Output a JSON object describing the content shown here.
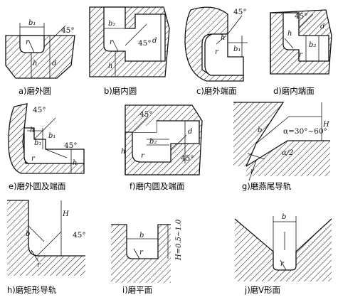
{
  "panels": [
    {
      "id": "a",
      "caption": "a)磨外圆",
      "labels": {
        "b": "b₁",
        "r": "r",
        "h": "h",
        "d": "d",
        "angle": "45°"
      }
    },
    {
      "id": "b",
      "caption": "b)磨内圆",
      "labels": {
        "b": "b₂",
        "r": "r",
        "h": "h",
        "d": "d",
        "angle": "45°"
      }
    },
    {
      "id": "c",
      "caption": "c)磨外端面",
      "labels": {
        "b": "b₁",
        "r": "r",
        "h": "h",
        "angle": "45°"
      }
    },
    {
      "id": "d",
      "caption": "d)磨内端面",
      "labels": {
        "b": "b₂",
        "r": "r",
        "h": "h",
        "d": "d",
        "angle": "45°"
      }
    },
    {
      "id": "e",
      "caption": "e)磨外圆及端面",
      "labels": {
        "b": "b₁",
        "b2": "b₁",
        "r": "r",
        "h": "h",
        "h2": "h",
        "angle1": "45°",
        "angle2": "45°"
      }
    },
    {
      "id": "f",
      "caption": "f)磨内圆及端面",
      "labels": {
        "b": "b₂",
        "r": "r",
        "h": "h",
        "d": "d",
        "angle1": "45°",
        "angle2": "45°"
      }
    },
    {
      "id": "g",
      "caption": "g)磨燕尾导轨",
      "labels": {
        "b": "b",
        "H": "H",
        "alpha": "α=30°~60°",
        "half": "α/2",
        "r": "r"
      }
    },
    {
      "id": "h",
      "caption": "h)磨矩形导轨",
      "labels": {
        "b": "b",
        "H": "H",
        "r": "r",
        "angle": "45°"
      }
    },
    {
      "id": "i",
      "caption": "i)磨平面",
      "labels": {
        "b": "b",
        "r": "r",
        "H": "H=0.5~1.0"
      }
    },
    {
      "id": "j",
      "caption": "j)磨V形面",
      "labels": {
        "b": "b",
        "r": "r"
      }
    }
  ]
}
